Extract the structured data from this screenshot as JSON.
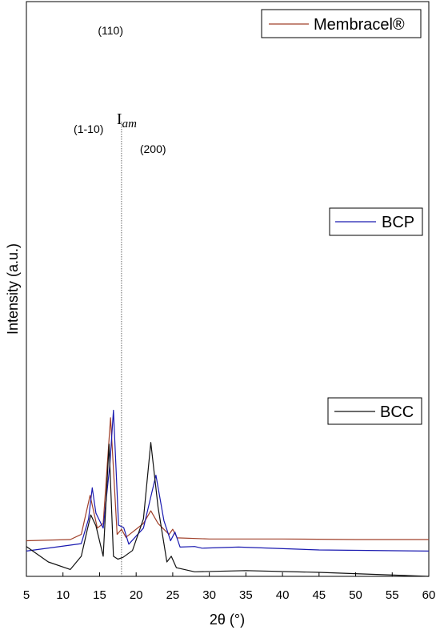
{
  "chart_data": {
    "type": "line",
    "xlabel": "2θ (°)",
    "ylabel": "Intensity (a.u.)",
    "xlim": [
      5,
      60
    ],
    "x_ticks": [
      5,
      10,
      15,
      20,
      25,
      30,
      35,
      40,
      45,
      50,
      55,
      60
    ],
    "grid": false,
    "legend": "one box per curve, at the right end of each curve",
    "colors": {
      "membracel": "#a0402a",
      "bcp": "#1a1ab0",
      "bcc": "#111111",
      "iam_line": "#555555"
    },
    "series": [
      {
        "name": "Membracel®",
        "baseline": 0.062,
        "x": [
          5,
          11,
          12.5,
          13.7,
          14.7,
          15.5,
          16.5,
          17.4,
          18.0,
          18.6,
          21.0,
          22.0,
          23.0,
          24.5,
          25.0,
          25.6,
          30,
          40,
          50,
          60
        ],
        "value": [
          0.0,
          0.002,
          0.011,
          0.079,
          0.022,
          0.03,
          0.214,
          0.011,
          0.02,
          0.006,
          0.03,
          0.052,
          0.03,
          0.011,
          0.02,
          0.005,
          0.003,
          0.003,
          0.002,
          0.002
        ]
      },
      {
        "name": "BCP",
        "baseline": 0.044,
        "x": [
          5,
          12.5,
          13.5,
          14.0,
          14.5,
          15.5,
          16.4,
          16.9,
          17.6,
          18.3,
          19.0,
          21.0,
          22.7,
          23.8,
          24.7,
          25.3,
          26.0,
          28.0,
          29.0,
          34,
          45,
          60
        ],
        "value": [
          0.0,
          0.013,
          0.056,
          0.11,
          0.066,
          0.04,
          0.15,
          0.245,
          0.045,
          0.041,
          0.012,
          0.04,
          0.132,
          0.053,
          0.018,
          0.033,
          0.007,
          0.008,
          0.005,
          0.007,
          0.002,
          0.0
        ]
      },
      {
        "name": "BCC",
        "baseline": 0.0,
        "x": [
          5,
          8,
          11,
          12.5,
          13.3,
          13.8,
          14.5,
          15.5,
          16.3,
          16.9,
          17.5,
          18.2,
          19.5,
          21.0,
          22.0,
          23.0,
          24.2,
          24.8,
          25.5,
          28,
          35,
          45,
          60
        ],
        "value": [
          0.052,
          0.025,
          0.012,
          0.035,
          0.08,
          0.107,
          0.088,
          0.035,
          0.23,
          0.035,
          0.03,
          0.033,
          0.045,
          0.1,
          0.233,
          0.12,
          0.025,
          0.035,
          0.015,
          0.008,
          0.01,
          0.007,
          0.0
        ]
      }
    ],
    "annotations": [
      {
        "text": "(110)",
        "x": 16.5
      },
      {
        "text": "(1-10)",
        "x": 13.5
      },
      {
        "text": "(200)",
        "x": 22.3
      },
      {
        "text": "I",
        "subscript": "am",
        "x": 18.0
      }
    ],
    "reference_line_x": 18.0
  }
}
